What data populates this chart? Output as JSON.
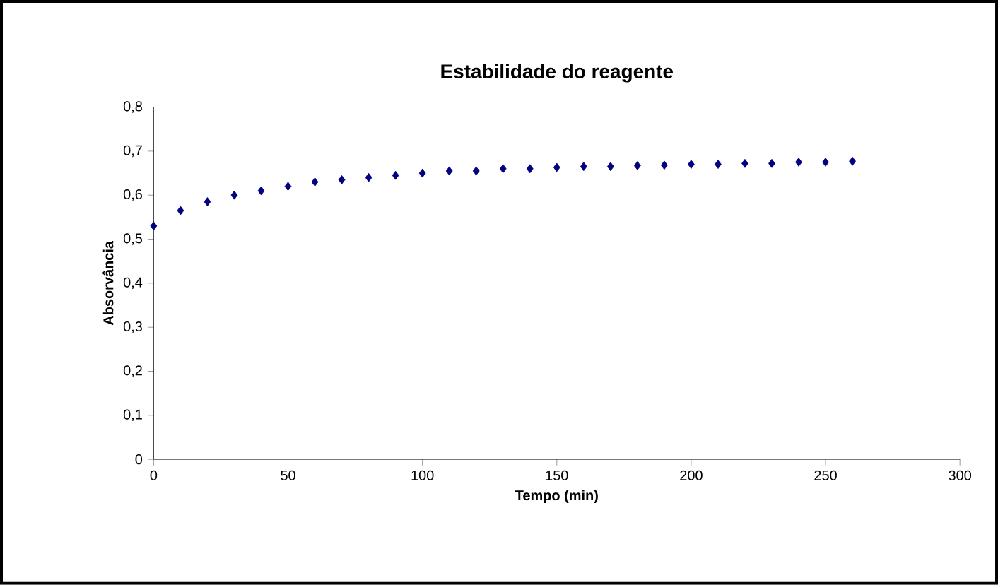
{
  "chart_data": {
    "type": "scatter",
    "title": "Estabilidade do reagente",
    "xlabel": "Tempo (min)",
    "ylabel": "Absorvância",
    "x": [
      0,
      10,
      20,
      30,
      40,
      50,
      60,
      70,
      80,
      90,
      100,
      110,
      120,
      130,
      140,
      150,
      160,
      170,
      180,
      190,
      200,
      210,
      220,
      230,
      240,
      250,
      260
    ],
    "series": [
      {
        "color": "#000080",
        "values": [
          0.53,
          0.565,
          0.585,
          0.6,
          0.61,
          0.62,
          0.63,
          0.635,
          0.64,
          0.645,
          0.65,
          0.655,
          0.655,
          0.66,
          0.66,
          0.663,
          0.665,
          0.665,
          0.667,
          0.668,
          0.67,
          0.67,
          0.672,
          0.672,
          0.675,
          0.675,
          0.677
        ]
      }
    ],
    "xlim": [
      0,
      300
    ],
    "xticks": [
      0,
      50,
      100,
      150,
      200,
      250,
      300
    ],
    "ylim": [
      0,
      0.8
    ],
    "yticks": [
      {
        "value": 0,
        "label": "0"
      },
      {
        "value": 0.1,
        "label": "0,1"
      },
      {
        "value": 0.2,
        "label": "0,2"
      },
      {
        "value": 0.3,
        "label": "0,3"
      },
      {
        "value": 0.4,
        "label": "0,4"
      },
      {
        "value": 0.5,
        "label": "0,5"
      },
      {
        "value": 0.6,
        "label": "0,6"
      },
      {
        "value": 0.7,
        "label": "0,7"
      },
      {
        "value": 0.8,
        "label": "0,8"
      }
    ],
    "marker": "diamond",
    "grid": false
  }
}
